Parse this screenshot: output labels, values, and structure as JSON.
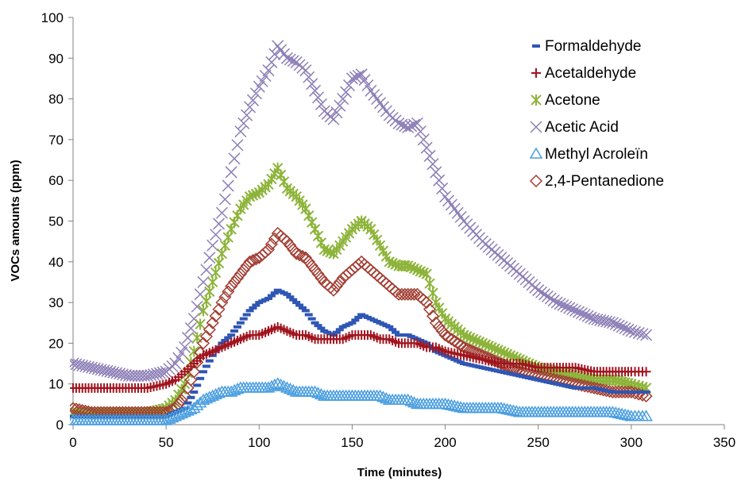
{
  "chart_data": {
    "type": "scatter",
    "title": "",
    "xlabel": "Time (minutes)",
    "ylabel": "VOCs amounts (ppm)",
    "xlim": [
      0,
      350
    ],
    "ylim": [
      0,
      100
    ],
    "xticks": [
      "0",
      "50",
      "100",
      "150",
      "200",
      "250",
      "300",
      "350"
    ],
    "yticks": [
      "0",
      "10",
      "20",
      "30",
      "40",
      "50",
      "60",
      "70",
      "80",
      "90",
      "100"
    ],
    "grid": false,
    "legend_position": "top-right",
    "x": [
      0,
      10,
      20,
      30,
      40,
      50,
      55,
      60,
      65,
      70,
      75,
      80,
      85,
      90,
      95,
      100,
      105,
      110,
      115,
      120,
      125,
      130,
      135,
      140,
      145,
      150,
      155,
      160,
      165,
      170,
      175,
      180,
      185,
      190,
      195,
      200,
      210,
      220,
      230,
      240,
      250,
      260,
      270,
      280,
      290,
      300,
      308
    ],
    "series": [
      {
        "name": "Formaldehyde",
        "marker": "dash",
        "color": "#2f56b4",
        "values": [
          2,
          2,
          2,
          2,
          2,
          2,
          3,
          4,
          8,
          13,
          17,
          20,
          22,
          25,
          28,
          30,
          31,
          33,
          32,
          30,
          28,
          25,
          23,
          22,
          24,
          25,
          27,
          26,
          25,
          24,
          22,
          22,
          21,
          20,
          18,
          17,
          15,
          14,
          13,
          12,
          11,
          10,
          9,
          9,
          8,
          8,
          8
        ]
      },
      {
        "name": "Acetaldehyde",
        "marker": "plus",
        "color": "#a0141e",
        "values": [
          9,
          9,
          9,
          9,
          9,
          10,
          11,
          13,
          15,
          17,
          18,
          19,
          20,
          21,
          22,
          22,
          23,
          24,
          23,
          22,
          22,
          21,
          21,
          21,
          21,
          22,
          22,
          22,
          21,
          21,
          20,
          20,
          20,
          19,
          19,
          18,
          17,
          16,
          15,
          15,
          14,
          14,
          14,
          13,
          13,
          13,
          13
        ]
      },
      {
        "name": "Acetone",
        "marker": "asterisk",
        "color": "#8db43a",
        "values": [
          3,
          3,
          3,
          3,
          3,
          4,
          6,
          10,
          18,
          28,
          35,
          42,
          48,
          53,
          56,
          57,
          59,
          63,
          58,
          56,
          53,
          48,
          43,
          42,
          45,
          48,
          50,
          48,
          44,
          40,
          39,
          39,
          38,
          37,
          30,
          26,
          22,
          20,
          18,
          16,
          14,
          13,
          12,
          11,
          11,
          10,
          9
        ]
      },
      {
        "name": "Acetic Acid",
        "marker": "x",
        "color": "#8d7fb7",
        "values": [
          15,
          14,
          13,
          12,
          12,
          13,
          15,
          19,
          26,
          35,
          44,
          52,
          62,
          72,
          78,
          83,
          87,
          93,
          90,
          89,
          87,
          82,
          77,
          75,
          80,
          85,
          86,
          82,
          79,
          76,
          74,
          73,
          74,
          68,
          62,
          56,
          50,
          45,
          41,
          37,
          33,
          30,
          28,
          26,
          25,
          23,
          22
        ]
      },
      {
        "name": "Methyl Acroleïn",
        "marker": "triangle",
        "color": "#4a9ee0",
        "values": [
          1,
          1,
          1,
          1,
          1,
          1,
          2,
          3,
          4,
          6,
          7,
          8,
          8,
          9,
          9,
          9,
          9,
          10,
          9,
          8,
          8,
          8,
          7,
          7,
          7,
          7,
          7,
          7,
          7,
          6,
          6,
          6,
          5,
          5,
          5,
          5,
          4,
          4,
          4,
          3,
          3,
          3,
          3,
          3,
          3,
          2,
          2
        ]
      },
      {
        "name": "2,4-Pentanedione",
        "marker": "diamond",
        "color": "#a23e33",
        "values": [
          4,
          3,
          3,
          3,
          3,
          3,
          4,
          7,
          13,
          20,
          25,
          30,
          34,
          37,
          40,
          41,
          43,
          47,
          45,
          42,
          41,
          38,
          35,
          33,
          36,
          38,
          40,
          38,
          36,
          34,
          32,
          32,
          32,
          30,
          25,
          22,
          19,
          17,
          15,
          13,
          12,
          11,
          10,
          9,
          8,
          8,
          7
        ]
      }
    ]
  }
}
